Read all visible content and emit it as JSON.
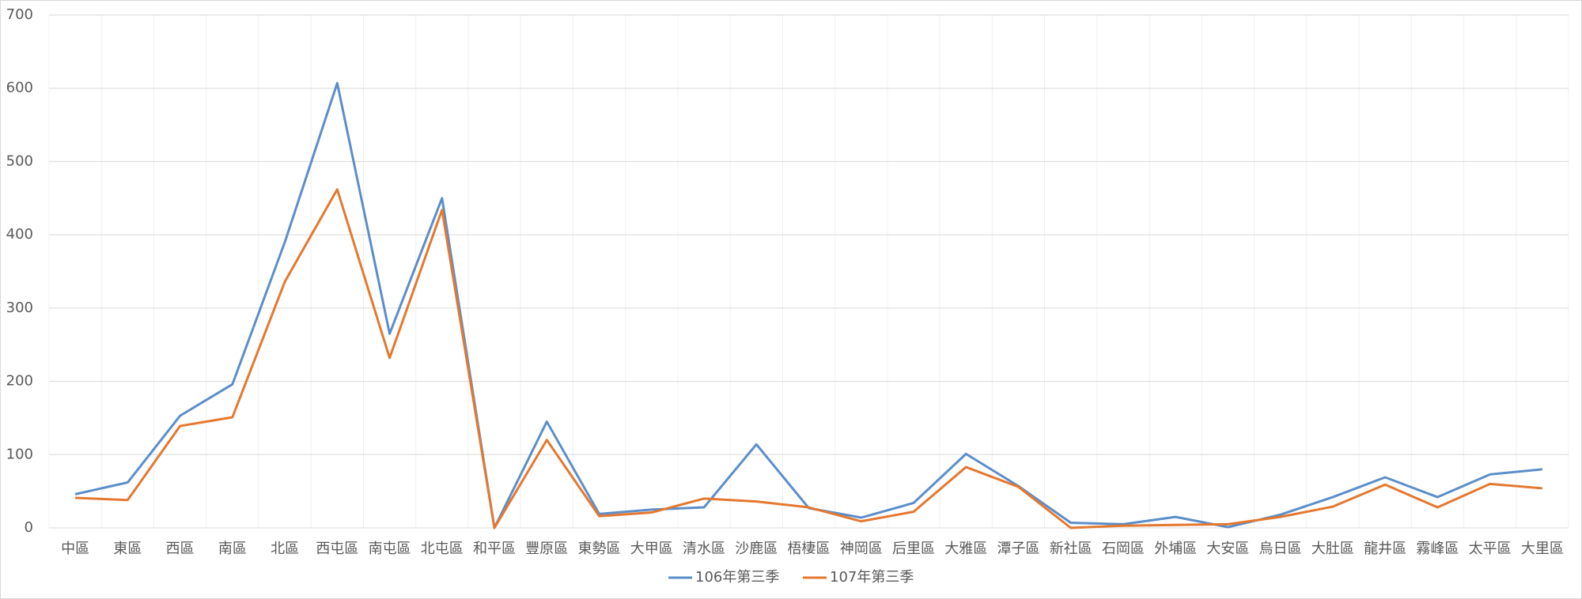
{
  "chart_data": {
    "type": "line",
    "categories": [
      "中區",
      "東區",
      "西區",
      "南區",
      "北區",
      "西屯區",
      "南屯區",
      "北屯區",
      "和平區",
      "豐原區",
      "東勢區",
      "大甲區",
      "清水區",
      "沙鹿區",
      "梧棲區",
      "神岡區",
      "后里區",
      "大雅區",
      "潭子區",
      "新社區",
      "石岡區",
      "外埔區",
      "大安區",
      "烏日區",
      "大肚區",
      "龍井區",
      "霧峰區",
      "太平區",
      "大里區"
    ],
    "series": [
      {
        "name": "106年第三季",
        "color": "#5b8ec9",
        "values": [
          46,
          62,
          153,
          196,
          390,
          607,
          265,
          450,
          0,
          145,
          19,
          25,
          28,
          114,
          27,
          14,
          34,
          101,
          57,
          7,
          5,
          15,
          1,
          18,
          42,
          69,
          42,
          73,
          80
        ]
      },
      {
        "name": "107年第三季",
        "color": "#e4782f",
        "values": [
          41,
          38,
          139,
          151,
          336,
          462,
          232,
          434,
          0,
          120,
          16,
          21,
          40,
          36,
          28,
          9,
          22,
          83,
          56,
          0,
          3,
          4,
          5,
          15,
          29,
          59,
          28,
          60,
          54
        ]
      }
    ],
    "ylim": [
      0,
      700
    ],
    "yticks": [
      0,
      100,
      200,
      300,
      400,
      500,
      600,
      700
    ],
    "grid": true,
    "legend": "bottom"
  }
}
